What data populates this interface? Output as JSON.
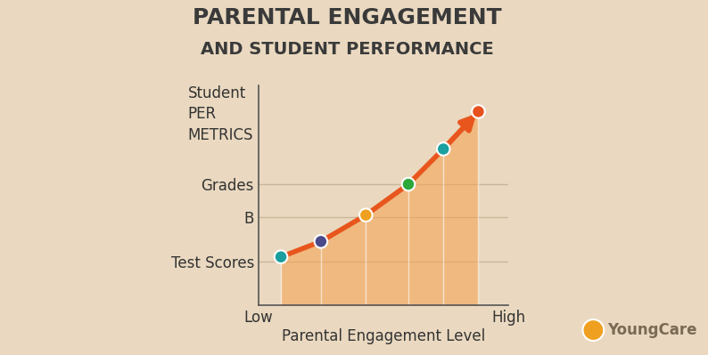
{
  "chart_data": {
    "type": "line",
    "title": "PARENTAL ENGAGEMENT",
    "subtitle": "AND STUDENT PERFORMANCE",
    "y_label": "Student\nPER\nMETRICS",
    "x_label": "Parental Engagement Level",
    "annotations": [
      "YoungCare"
    ],
    "x": [
      0.9,
      2.5,
      4.3,
      6.0,
      7.4,
      8.8
    ],
    "values": [
      2.2,
      2.9,
      4.1,
      5.5,
      7.1,
      8.8
    ],
    "color": "#e8561e",
    "colors": [
      "#1a9e9e",
      "#4a4a8a",
      "#f0a020",
      "#2ea83a",
      "#1aa0a0",
      "#e8501e"
    ],
    "marker": "o",
    "xlim": [
      0,
      10
    ],
    "xticks": [
      {
        "value": 0,
        "label": "Low"
      },
      {
        "value": 10,
        "label": "High"
      }
    ],
    "ylim": [
      0,
      10
    ],
    "yticks": [
      {
        "value": 2,
        "label": "Test Scores"
      },
      {
        "value": 4,
        "label": "B"
      },
      {
        "value": 5.5,
        "label": "Grades"
      }
    ],
    "grid": true
  }
}
